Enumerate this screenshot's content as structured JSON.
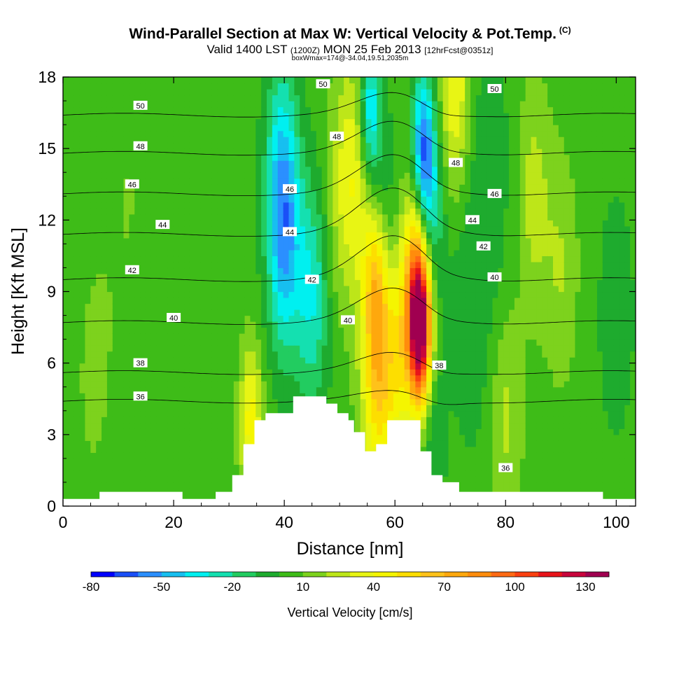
{
  "chart_data": {
    "type": "heatmap",
    "title": "Wind-Parallel Section at Max W: Vertical Velocity & Pot.Temp.",
    "title_mark": "(C)",
    "subtitle_main": "Valid 1400 LST",
    "subtitle_utc": "(1200Z)",
    "subtitle_date": "MON 25 Feb 2013",
    "subtitle_fcst": "[12hrFcst@0351z]",
    "subtitle2": "boxWmax=174@-34.04,19.51,2035m",
    "xlabel": "Distance [nm]",
    "ylabel": "Height [Kft MSL]",
    "xlim": [
      0,
      103.5
    ],
    "ylim": [
      0,
      18
    ],
    "xticks": [
      "0",
      "20",
      "40",
      "60",
      "80",
      "100"
    ],
    "yticks": [
      "0",
      "3",
      "6",
      "9",
      "12",
      "15",
      "18"
    ],
    "colorbar": {
      "label": "Vertical Velocity [cm/s]",
      "range": [
        -80,
        140
      ],
      "ticks": [
        "-80",
        "-50",
        "-20",
        "10",
        "40",
        "70",
        "100",
        "130"
      ],
      "colors": [
        "#0000ff",
        "#1a4ff7",
        "#2b8fff",
        "#17bff0",
        "#00f0f0",
        "#14e0b0",
        "#22cc60",
        "#1eab2e",
        "#3ebc18",
        "#7dd21d",
        "#bde619",
        "#e8f514",
        "#f5f500",
        "#fdde00",
        "#ffc21a",
        "#fea80d",
        "#ff8c0c",
        "#ff6a14",
        "#fa4010",
        "#e8141a",
        "#c8053c",
        "#a00050"
      ]
    },
    "background_w": 5,
    "w_features": [
      {
        "x": 12,
        "z": 13,
        "w": 7,
        "value": 10
      },
      {
        "x": 40,
        "z": 11,
        "w": 3,
        "value": -40
      },
      {
        "x": 39.5,
        "z": 14.5,
        "w": 3,
        "value": -25
      },
      {
        "x": 45,
        "z": 8.8,
        "w": 3,
        "value": -30
      },
      {
        "x": 50,
        "z": 13,
        "w": 3,
        "value": 20
      },
      {
        "x": 53,
        "z": 14,
        "w": 3,
        "value": 35
      },
      {
        "x": 56.5,
        "z": 9.5,
        "w": 2.2,
        "value": 45
      },
      {
        "x": 57,
        "z": 5.5,
        "w": 3,
        "value": 60
      },
      {
        "x": 55.5,
        "z": 16.5,
        "w": 2,
        "value": -45
      },
      {
        "x": 58,
        "z": 12.5,
        "w": 2.5,
        "value": -10
      },
      {
        "x": 61,
        "z": 6.5,
        "w": 2.5,
        "value": 40
      },
      {
        "x": 64.5,
        "z": 7.5,
        "w": 2,
        "value": 140
      },
      {
        "x": 64,
        "z": 10.5,
        "w": 2.5,
        "value": 60
      },
      {
        "x": 65,
        "z": 15,
        "w": 2,
        "value": -50
      },
      {
        "x": 66,
        "z": 12.5,
        "w": 2.5,
        "value": -35
      },
      {
        "x": 67,
        "z": 3,
        "w": 2,
        "value": -10
      },
      {
        "x": 71,
        "z": 17.5,
        "w": 3,
        "value": 45
      },
      {
        "x": 75,
        "z": 12,
        "w": 6,
        "value": -10
      },
      {
        "x": 80,
        "z": 4,
        "w": 3,
        "value": 25
      },
      {
        "x": 85,
        "z": 13,
        "w": 3,
        "value": 25
      },
      {
        "x": 90,
        "z": 10,
        "w": 3,
        "value": 20
      },
      {
        "x": 100,
        "z": 8,
        "w": 3,
        "value": -10
      },
      {
        "x": 34,
        "z": 3.5,
        "w": 2,
        "value": 45
      },
      {
        "x": 5,
        "z": 5,
        "w": 4,
        "value": 10
      }
    ],
    "theta_contours": [
      {
        "level": 36,
        "base_z": 4.4,
        "crest": 0.4
      },
      {
        "level": 38,
        "base_z": 5.6,
        "crest": 0.8
      },
      {
        "level": 40,
        "base_z": 7.7,
        "crest": 1.4
      },
      {
        "level": 42,
        "base_z": 9.5,
        "crest": 1.8
      },
      {
        "level": 44,
        "base_z": 11.4,
        "crest": 1.9
      },
      {
        "level": 46,
        "base_z": 13.1,
        "crest": 1.6
      },
      {
        "level": 48,
        "base_z": 14.8,
        "crest": 1.3
      },
      {
        "level": 50,
        "base_z": 16.4,
        "crest": 0.9
      }
    ],
    "contour_labels": [
      {
        "text": "50",
        "x": 14,
        "z": 16.8
      },
      {
        "text": "48",
        "x": 14,
        "z": 15.1
      },
      {
        "text": "46",
        "x": 12.5,
        "z": 13.5
      },
      {
        "text": "44",
        "x": 18,
        "z": 11.8
      },
      {
        "text": "42",
        "x": 12.5,
        "z": 9.9
      },
      {
        "text": "40",
        "x": 20,
        "z": 7.9
      },
      {
        "text": "38",
        "x": 14,
        "z": 6.0
      },
      {
        "text": "36",
        "x": 14,
        "z": 4.6
      },
      {
        "text": "50",
        "x": 47,
        "z": 17.7
      },
      {
        "text": "48",
        "x": 49.5,
        "z": 15.5
      },
      {
        "text": "46",
        "x": 41,
        "z": 13.3
      },
      {
        "text": "44",
        "x": 41,
        "z": 11.5
      },
      {
        "text": "42",
        "x": 45,
        "z": 9.5
      },
      {
        "text": "40",
        "x": 51.5,
        "z": 7.8
      },
      {
        "text": "48",
        "x": 71,
        "z": 14.4
      },
      {
        "text": "50",
        "x": 78,
        "z": 17.5
      },
      {
        "text": "46",
        "x": 78,
        "z": 13.1
      },
      {
        "text": "44",
        "x": 74,
        "z": 12.0
      },
      {
        "text": "42",
        "x": 76,
        "z": 10.9
      },
      {
        "text": "40",
        "x": 78,
        "z": 9.6
      },
      {
        "text": "38",
        "x": 68,
        "z": 5.9
      },
      {
        "text": "36",
        "x": 80,
        "z": 1.6
      }
    ],
    "terrain": [
      [
        0,
        0.3
      ],
      [
        6.6,
        0.3
      ],
      [
        6.6,
        0.6
      ],
      [
        21.6,
        0.6
      ],
      [
        21.6,
        0.3
      ],
      [
        27.6,
        0.3
      ],
      [
        27.6,
        0.6
      ],
      [
        30.6,
        0.6
      ],
      [
        30.6,
        1.3
      ],
      [
        32.6,
        1.3
      ],
      [
        32.6,
        2.6
      ],
      [
        34.6,
        2.6
      ],
      [
        34.6,
        3.6
      ],
      [
        36.6,
        3.6
      ],
      [
        36.6,
        3.9
      ],
      [
        41.6,
        3.9
      ],
      [
        41.6,
        4.6
      ],
      [
        47.6,
        4.6
      ],
      [
        47.6,
        4.3
      ],
      [
        49.6,
        4.3
      ],
      [
        49.6,
        3.9
      ],
      [
        51.6,
        3.9
      ],
      [
        51.6,
        3.6
      ],
      [
        52.6,
        3.6
      ],
      [
        52.6,
        3.1
      ],
      [
        54.6,
        3.1
      ],
      [
        54.6,
        2.3
      ],
      [
        56.6,
        2.3
      ],
      [
        56.6,
        2.6
      ],
      [
        58.6,
        2.6
      ],
      [
        58.6,
        3.6
      ],
      [
        64.6,
        3.6
      ],
      [
        64.6,
        2.3
      ],
      [
        66.6,
        2.3
      ],
      [
        66.6,
        1.3
      ],
      [
        68.6,
        1.3
      ],
      [
        68.6,
        1.0
      ],
      [
        71.6,
        1.0
      ],
      [
        71.6,
        0.6
      ],
      [
        97.6,
        0.6
      ],
      [
        97.6,
        0.3
      ],
      [
        103.5,
        0.3
      ]
    ]
  }
}
